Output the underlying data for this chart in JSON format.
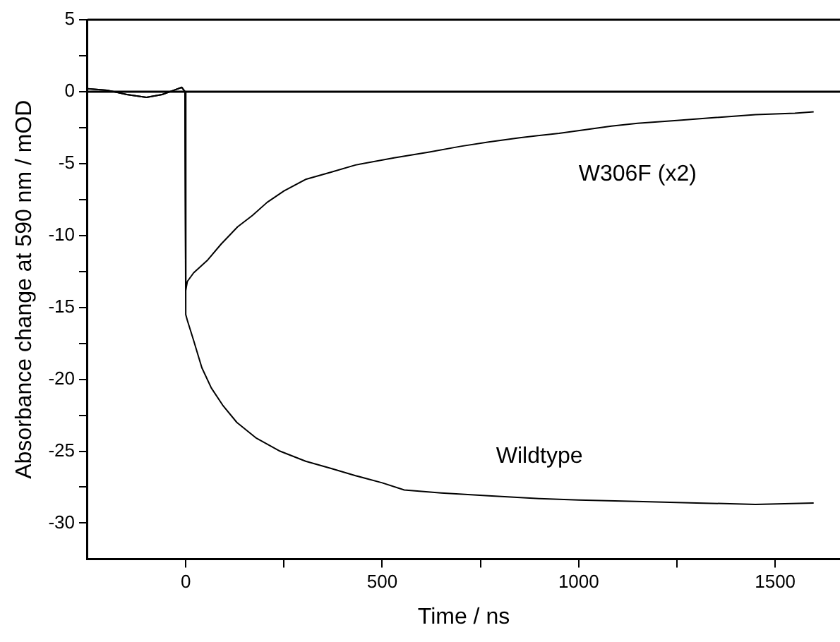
{
  "chart_data": {
    "type": "line",
    "xlabel": "Time / ns",
    "ylabel": "Absorbance change at 590 nm / mOD",
    "xlim": [
      -250,
      1665
    ],
    "xticks": [
      0,
      {
        "value": 250,
        "label": null
      },
      500,
      {
        "value": 750,
        "label": null
      },
      1000,
      {
        "value": 1250,
        "label": null
      },
      1500
    ],
    "ylim": [
      -32.5,
      5
    ],
    "yticks": [
      5,
      {
        "value": 2.5,
        "label": null
      },
      0,
      {
        "value": -2.5,
        "label": null
      },
      -5,
      {
        "value": -7.5,
        "label": null
      },
      -10,
      {
        "value": -12.5,
        "label": null
      },
      -15,
      {
        "value": -17.5,
        "label": null
      },
      -20,
      {
        "value": -22.5,
        "label": null
      },
      -25,
      {
        "value": -27.5,
        "label": null
      },
      -30
    ],
    "grid": false,
    "legend": false,
    "marker": "none",
    "line_style": "solid",
    "ref_lines": [
      {
        "axis": "y",
        "value": 0,
        "color": "#000000"
      }
    ],
    "series": [
      {
        "name": "W306F (x2)",
        "color": "#000000",
        "x": [
          -250,
          -200,
          -150,
          -100,
          -60,
          -30,
          -10,
          -2,
          0,
          4,
          20,
          56,
          90,
          132,
          170,
          207,
          250,
          305,
          370,
          432,
          530,
          620,
          700,
          771,
          850,
          950,
          1083,
          1150,
          1250,
          1350,
          1450,
          1550,
          1598
        ],
        "values": [
          0.2,
          0.1,
          -0.2,
          -0.4,
          -0.2,
          0.1,
          0.3,
          0,
          -13.8,
          -13.2,
          -12.6,
          -11.7,
          -10.6,
          -9.4,
          -8.6,
          -7.7,
          -6.9,
          -6.1,
          -5.6,
          -5.1,
          -4.6,
          -4.2,
          -3.8,
          -3.5,
          -3.2,
          -2.9,
          -2.4,
          -2.2,
          -2,
          -1.8,
          -1.6,
          -1.5,
          -1.4
        ]
      },
      {
        "name": "Wildtype",
        "color": "#000000",
        "x": [
          -250,
          -200,
          -150,
          -100,
          -60,
          -30,
          -10,
          -2,
          0,
          4,
          20,
          41,
          65,
          94,
          130,
          180,
          240,
          305,
          370,
          432,
          500,
          556,
          650,
          771,
          900,
          1000,
          1147,
          1300,
          1450,
          1598
        ],
        "values": [
          0.2,
          0.1,
          -0.2,
          -0.4,
          -0.2,
          0.1,
          0.3,
          0,
          -15.5,
          -15.9,
          -17.3,
          -19.2,
          -20.6,
          -21.8,
          -23,
          -24.1,
          -25,
          -25.7,
          -26.2,
          -26.7,
          -27.2,
          -27.7,
          -27.9,
          -28.1,
          -28.3,
          -28.4,
          -28.5,
          -28.6,
          -28.7,
          -28.6
        ]
      }
    ]
  }
}
